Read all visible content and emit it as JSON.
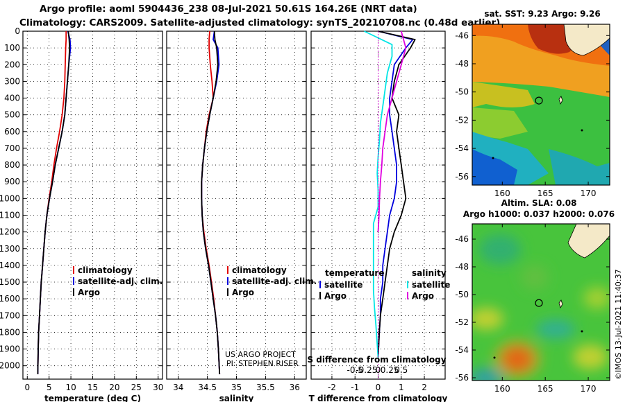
{
  "header": {
    "line1": "Argo profile: aoml 5904436_238 08-Jul-2021 50.61S 164.26E (NRT data)",
    "line2": "Climatology: CARS2009. Satellite-adjusted climatology: synTS_20210708.nc (0.48d earlier)"
  },
  "credit": {
    "project": "US ARGO PROJECT",
    "pi": "PI: STEPHEN RISER",
    "imos": "©IMOS 13-Jul-2021 11:40:37"
  },
  "colors": {
    "climatology": "#e00000",
    "satellite": "#0000dd",
    "argo": "#000000",
    "sat_salinity": "#00e5e5",
    "argo_salinity": "#e000e0"
  },
  "chart_data": [
    {
      "type": "line",
      "id": "temperature",
      "xlabel": "temperature (deg C)",
      "ylabel": "",
      "xlim": [
        -1,
        31
      ],
      "ylim": [
        2080,
        0
      ],
      "xticks": [
        0,
        5,
        10,
        15,
        20,
        25,
        30
      ],
      "xtick_labels": [
        "0",
        "5",
        "10",
        "15",
        "20",
        "25",
        "30"
      ],
      "yticks": [
        0,
        100,
        200,
        300,
        400,
        500,
        600,
        700,
        800,
        900,
        1000,
        1100,
        1200,
        1300,
        1400,
        1500,
        1600,
        1700,
        1800,
        1900,
        2000
      ],
      "ytick_labels": [
        "0",
        "100",
        "200",
        "300",
        "400",
        "500",
        "600",
        "700",
        "800",
        "900",
        "1000",
        "1100",
        "1200",
        "1300",
        "1400",
        "1500",
        "1600",
        "1700",
        "1800",
        "1900",
        "2000"
      ],
      "legend": [
        "climatology",
        "satellite-adj. clim.",
        "Argo"
      ],
      "legend_position": "lower-right",
      "series": [
        {
          "name": "climatology",
          "color": "#e00000",
          "x": [
            8.9,
            8.9,
            8.8,
            8.7,
            8.6,
            8.4,
            8.0,
            7.4,
            6.7,
            6.1,
            5.6,
            5.0,
            4.5,
            4.1,
            3.8,
            3.5,
            3.2,
            3.0,
            2.8,
            2.6,
            2.5,
            2.4
          ],
          "y": [
            0,
            50,
            100,
            200,
            300,
            400,
            500,
            600,
            700,
            800,
            900,
            1000,
            1100,
            1200,
            1300,
            1400,
            1500,
            1600,
            1700,
            1800,
            1900,
            2050
          ]
        },
        {
          "name": "satellite-adj. clim.",
          "color": "#0000dd",
          "x": [
            9.3,
            9.8,
            9.9,
            9.5,
            9.2,
            8.9,
            8.6,
            8.0,
            7.2,
            6.4,
            5.8,
            5.1,
            4.5,
            4.1,
            3.8,
            3.5,
            3.2,
            3.0,
            2.8,
            2.6,
            2.5,
            2.4
          ],
          "y": [
            0,
            50,
            100,
            200,
            300,
            400,
            500,
            600,
            700,
            800,
            900,
            1000,
            1100,
            1200,
            1300,
            1400,
            1500,
            1600,
            1700,
            1800,
            1900,
            2050
          ]
        },
        {
          "name": "Argo",
          "color": "#000000",
          "x": [
            9.4,
            9.6,
            9.7,
            9.5,
            9.2,
            8.9,
            8.6,
            8.0,
            7.2,
            6.4,
            5.8,
            5.1,
            4.5,
            4.1,
            3.8,
            3.5,
            3.2,
            3.0,
            2.8,
            2.6,
            2.5,
            2.4
          ],
          "y": [
            0,
            50,
            100,
            200,
            300,
            400,
            500,
            600,
            700,
            800,
            900,
            1000,
            1100,
            1200,
            1300,
            1400,
            1500,
            1600,
            1700,
            1800,
            1900,
            2050
          ]
        }
      ]
    },
    {
      "type": "line",
      "id": "salinity",
      "xlabel": "salinity",
      "xlim": [
        33.8,
        36.2
      ],
      "ylim": [
        2080,
        0
      ],
      "xticks": [
        34,
        34.5,
        35,
        35.5,
        36
      ],
      "xtick_labels": [
        "34",
        "34.5",
        "35",
        "35.5",
        "36"
      ],
      "legend": [
        "climatology",
        "satellite-adj. clim.",
        "Argo"
      ],
      "legend_position": "lower-right",
      "series": [
        {
          "name": "climatology",
          "color": "#e00000",
          "x": [
            34.54,
            34.53,
            34.53,
            34.55,
            34.58,
            34.6,
            34.53,
            34.48,
            34.45,
            34.42,
            34.4,
            34.4,
            34.41,
            34.44,
            34.48,
            34.53,
            34.57,
            34.61,
            34.64,
            34.67,
            34.69,
            34.71
          ],
          "y": [
            0,
            50,
            100,
            200,
            300,
            400,
            500,
            600,
            700,
            800,
            900,
            1000,
            1100,
            1200,
            1300,
            1400,
            1500,
            1600,
            1700,
            1800,
            1900,
            2050
          ]
        },
        {
          "name": "satellite-adj. clim.",
          "color": "#0000dd",
          "x": [
            34.62,
            34.6,
            34.68,
            34.7,
            34.66,
            34.6,
            34.54,
            34.49,
            34.45,
            34.42,
            34.4,
            34.4,
            34.41,
            34.43,
            34.47,
            34.52,
            34.56,
            34.6,
            34.64,
            34.67,
            34.69,
            34.71
          ],
          "y": [
            0,
            50,
            100,
            200,
            300,
            400,
            500,
            600,
            700,
            800,
            900,
            1000,
            1100,
            1200,
            1300,
            1400,
            1500,
            1600,
            1700,
            1800,
            1900,
            2050
          ]
        },
        {
          "name": "Argo",
          "color": "#000000",
          "x": [
            34.62,
            34.63,
            34.66,
            34.68,
            34.65,
            34.6,
            34.54,
            34.49,
            34.45,
            34.42,
            34.4,
            34.4,
            34.41,
            34.43,
            34.47,
            34.52,
            34.56,
            34.6,
            34.64,
            34.67,
            34.69,
            34.71
          ],
          "y": [
            0,
            50,
            100,
            200,
            300,
            400,
            500,
            600,
            700,
            800,
            900,
            1000,
            1100,
            1200,
            1300,
            1400,
            1500,
            1600,
            1700,
            1800,
            1900,
            2050
          ]
        }
      ]
    },
    {
      "type": "line",
      "id": "difference",
      "xlabel": "T difference from climatology",
      "xlabel_top": "S difference from climatology",
      "xlim": [
        -2.9,
        2.9
      ],
      "ylim": [
        2080,
        0
      ],
      "xticks": [
        -2,
        -1,
        0,
        1,
        2
      ],
      "xtick_labels": [
        "-2",
        "-1",
        "0",
        "1",
        "2"
      ],
      "xticks_top": [
        -0.5,
        -0.25,
        0,
        0.25,
        0.5
      ],
      "xtick_top_labels": [
        "-0.5",
        "-0.25",
        "0",
        "0.25",
        "0.5"
      ],
      "legend_temperature": {
        "title": "temperature",
        "entries": [
          "satellite",
          "Argo"
        ]
      },
      "legend_salinity": {
        "title": "salinity",
        "entries": [
          "satellite",
          "Argo"
        ]
      },
      "series": [
        {
          "name": "T satellite",
          "color": "#0000dd",
          "x": [
            0.0,
            1.5,
            1.2,
            0.7,
            0.6,
            0.5,
            0.5,
            0.6,
            0.7,
            0.8,
            0.8,
            0.7,
            0.5,
            0.4,
            0.3,
            0.2,
            0.2,
            0.1,
            0.1,
            0.05,
            0.0
          ],
          "y": [
            0,
            50,
            100,
            200,
            300,
            400,
            500,
            600,
            700,
            800,
            900,
            1000,
            1100,
            1200,
            1300,
            1400,
            1500,
            1600,
            1700,
            1800,
            1950
          ]
        },
        {
          "name": "T Argo",
          "color": "#000000",
          "x": [
            0.0,
            1.6,
            1.4,
            0.9,
            0.7,
            0.6,
            0.9,
            0.8,
            0.9,
            1.0,
            1.1,
            1.2,
            1.0,
            0.7,
            0.5,
            0.4,
            0.3,
            0.2,
            0.1,
            0.05,
            0.0
          ],
          "y": [
            0,
            50,
            100,
            200,
            300,
            400,
            500,
            600,
            700,
            800,
            900,
            1000,
            1100,
            1200,
            1300,
            1400,
            1500,
            1600,
            1700,
            1800,
            1950
          ]
        },
        {
          "name": "S satellite",
          "color": "#00e5e5",
          "x": [
            -0.3,
            0.3,
            0.3,
            0.2,
            0.15,
            0.1,
            0.05,
            0.03,
            0.0,
            -0.02,
            0.0,
            0.0,
            -0.1,
            -0.1,
            -0.1,
            -0.1,
            -0.1,
            -0.08,
            -0.05,
            0.0
          ],
          "y": [
            0,
            80,
            150,
            250,
            350,
            450,
            550,
            650,
            750,
            850,
            950,
            1050,
            1150,
            1250,
            1350,
            1450,
            1550,
            1650,
            1750,
            1950
          ]
        },
        {
          "name": "S Argo",
          "color": "#e000e0",
          "x": [
            0.5,
            0.6,
            0.5,
            0.4,
            0.3,
            0.2,
            0.15,
            0.1,
            0.08,
            0.05,
            0.03,
            0.02,
            0.0
          ],
          "y": [
            0,
            100,
            200,
            300,
            400,
            500,
            600,
            700,
            800,
            900,
            1000,
            1100,
            1200
          ]
        }
      ]
    },
    {
      "type": "heatmap",
      "id": "sst_map",
      "title": "sat. SST: 9.23 Argo: 9.26",
      "xlim": [
        156.5,
        172.5
      ],
      "ylim": [
        -56.6,
        -45.2
      ],
      "xticks": [
        160,
        165,
        170
      ],
      "xtick_labels": [
        "160",
        "165",
        "170"
      ],
      "yticks": [
        -46,
        -48,
        -50,
        -52,
        -54,
        -56
      ],
      "ytick_labels": [
        "-46",
        "-48",
        "-50",
        "-52",
        "-54",
        "-56"
      ],
      "marker": {
        "lon": 164.26,
        "lat": -50.61
      }
    },
    {
      "type": "heatmap",
      "id": "sla_map",
      "title_line1": "Altim. SLA: 0.08",
      "title_line2": "Argo h1000: 0.037 h2000: 0.076",
      "xlim": [
        156.5,
        172.5
      ],
      "ylim": [
        -56.2,
        -44.9
      ],
      "xticks": [
        160,
        165,
        170
      ],
      "xtick_labels": [
        "160",
        "165",
        "170"
      ],
      "yticks": [
        -46,
        -48,
        -50,
        -52,
        -54,
        -56
      ],
      "ytick_labels": [
        "-46",
        "-48",
        "-50",
        "-52",
        "-54",
        "-56"
      ],
      "marker": {
        "lon": 164.26,
        "lat": -50.61
      }
    }
  ]
}
